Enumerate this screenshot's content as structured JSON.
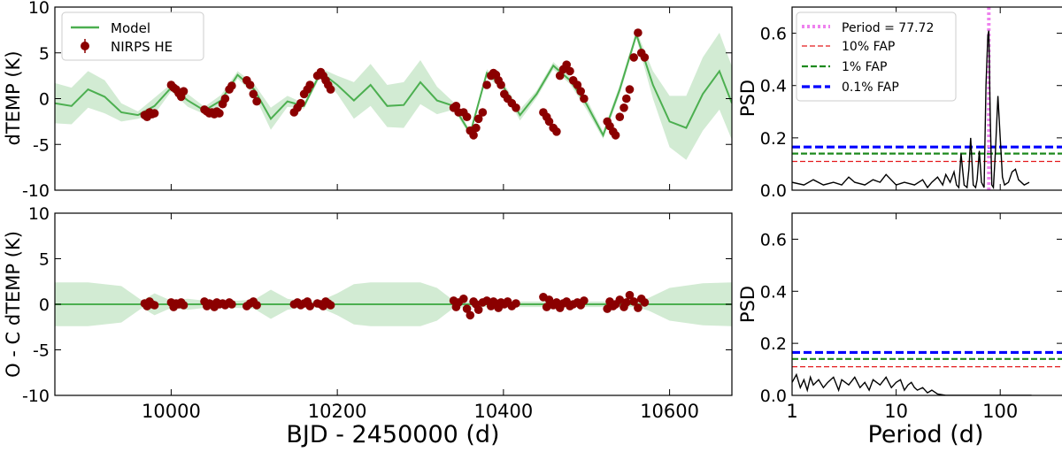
{
  "chart_data": [
    {
      "type": "line",
      "panel": "top-left",
      "xlabel": "",
      "ylabel": "dTEMP (K)",
      "xlim": [
        9860,
        10675
      ],
      "ylim": [
        -10,
        10
      ],
      "yticks": [
        "10",
        "5",
        "0",
        "-5",
        "-10"
      ],
      "xticks": [],
      "legend_placement": "top-left",
      "legend": [
        {
          "label": "Model",
          "kind": "line",
          "color": "#4caf50"
        },
        {
          "label": "NIRPS HE",
          "kind": "errorbar",
          "color": "#8b0000"
        }
      ],
      "series": [
        {
          "name": "Model",
          "x": [
            9860,
            9880,
            9900,
            9920,
            9940,
            9960,
            9980,
            10000,
            10020,
            10040,
            10060,
            10080,
            10100,
            10120,
            10140,
            10160,
            10180,
            10200,
            10220,
            10240,
            10260,
            10280,
            10300,
            10320,
            10340,
            10360,
            10380,
            10400,
            10420,
            10440,
            10460,
            10480,
            10500,
            10520,
            10540,
            10560,
            10580,
            10600,
            10620,
            10640,
            10660,
            10675
          ],
          "y": [
            -0.5,
            -0.8,
            1.0,
            0.2,
            -1.5,
            -1.8,
            -0.8,
            1.2,
            -0.2,
            -1.3,
            -0.2,
            2.6,
            1.0,
            -2.2,
            -0.3,
            -0.8,
            2.9,
            1.5,
            -0.2,
            1.5,
            -0.8,
            -0.7,
            1.8,
            -0.2,
            -0.8,
            -3.8,
            2.8,
            1.3,
            -1.8,
            0.5,
            3.6,
            2.0,
            -0.6,
            -4.0,
            1.0,
            7.0,
            1.5,
            -2.5,
            -3.2,
            0.5,
            3.0,
            -0.5
          ],
          "band_halfwidth": [
            2.2,
            2.0,
            2.0,
            1.8,
            1.0,
            0.4,
            0.9,
            0.4,
            0.7,
            0.4,
            0.6,
            0.4,
            0.6,
            1.2,
            0.6,
            0.3,
            0.4,
            1.0,
            2.0,
            2.3,
            2.3,
            2.5,
            2.4,
            1.5,
            0.4,
            0.3,
            0.4,
            0.4,
            0.6,
            0.4,
            0.4,
            0.4,
            0.6,
            0.4,
            0.5,
            0.4,
            1.5,
            2.8,
            3.5,
            4.0,
            4.2,
            4.0
          ]
        },
        {
          "name": "NIRPS HE",
          "x": [
            9968,
            9971,
            9974,
            9977,
            9980,
            10000,
            10003,
            10006,
            10009,
            10012,
            10015,
            10040,
            10043,
            10046,
            10049,
            10052,
            10055,
            10058,
            10062,
            10065,
            10070,
            10073,
            10091,
            10095,
            10099,
            10103,
            10148,
            10152,
            10156,
            10160,
            10164,
            10167,
            10176,
            10180,
            10183,
            10186,
            10189,
            10192,
            10340,
            10343,
            10346,
            10352,
            10356,
            10360,
            10364,
            10367,
            10370,
            10375,
            10380,
            10385,
            10388,
            10391,
            10394,
            10397,
            10401,
            10405,
            10410,
            10415,
            10448,
            10452,
            10455,
            10460,
            10464,
            10468,
            10472,
            10476,
            10480,
            10484,
            10489,
            10493,
            10497,
            10525,
            10528,
            10532,
            10535,
            10540,
            10545,
            10548,
            10552,
            10557,
            10562,
            10566,
            10570
          ],
          "y": [
            -1.8,
            -2.0,
            -1.5,
            -1.7,
            -1.6,
            1.5,
            1.2,
            1.0,
            0.6,
            0.2,
            0.8,
            -1.2,
            -1.4,
            -1.6,
            -1.5,
            -1.7,
            -1.4,
            -1.6,
            -0.6,
            0.0,
            1.0,
            1.4,
            2.0,
            1.5,
            0.5,
            -0.3,
            -1.5,
            -1.0,
            -0.5,
            0.5,
            1.0,
            1.5,
            2.5,
            2.9,
            2.5,
            2.0,
            1.5,
            1.0,
            -1.0,
            -0.8,
            -1.5,
            -1.5,
            -2.0,
            -3.5,
            -4.0,
            -3.2,
            -2.2,
            -1.5,
            1.5,
            2.5,
            2.8,
            2.6,
            2.0,
            1.5,
            0.5,
            0.0,
            -0.5,
            -1.0,
            -1.5,
            -2.0,
            -2.5,
            -3.2,
            -3.6,
            2.5,
            3.2,
            3.7,
            3.0,
            2.0,
            1.5,
            0.8,
            0.0,
            -2.5,
            -3.0,
            -3.6,
            -4.0,
            -2.0,
            -1.0,
            0.0,
            1.0,
            4.5,
            7.2,
            5.0,
            4.5
          ]
        }
      ]
    },
    {
      "type": "line",
      "panel": "bottom-left",
      "xlabel": "BJD - 2450000 (d)",
      "ylabel": "O - C dTEMP (K)",
      "xlim": [
        9860,
        10675
      ],
      "ylim": [
        -10,
        10
      ],
      "yticks": [
        "10",
        "5",
        "0",
        "-5",
        "-10"
      ],
      "xticks": [
        "10000",
        "10200",
        "10400",
        "10600"
      ],
      "xtick_values": [
        10000,
        10200,
        10400,
        10600
      ],
      "series": [
        {
          "name": "Model",
          "x": [
            9860,
            9900,
            9940,
            9965,
            9980,
            10000,
            10020,
            10040,
            10060,
            10080,
            10100,
            10120,
            10140,
            10160,
            10180,
            10200,
            10220,
            10240,
            10260,
            10280,
            10300,
            10320,
            10340,
            10360,
            10380,
            10400,
            10420,
            10440,
            10460,
            10480,
            10500,
            10520,
            10540,
            10560,
            10575,
            10600,
            10640,
            10675
          ],
          "y": [
            0,
            0,
            0,
            0,
            0,
            0,
            0,
            0,
            0,
            0,
            0,
            0,
            0,
            0,
            0,
            0,
            0,
            0,
            0,
            0,
            0,
            0,
            0,
            0,
            0,
            0,
            0,
            0,
            0,
            0,
            0,
            0,
            0,
            0,
            0,
            0,
            0,
            0
          ],
          "band_halfwidth": [
            2.4,
            2.4,
            2.0,
            0.4,
            1.2,
            0.4,
            0.6,
            0.4,
            0.4,
            0.4,
            0.5,
            1.6,
            0.6,
            0.3,
            0.4,
            1.2,
            2.2,
            2.4,
            2.4,
            2.4,
            2.4,
            1.8,
            0.4,
            0.3,
            0.3,
            0.3,
            0.3,
            0.3,
            0.3,
            0.3,
            0.3,
            0.3,
            0.3,
            0.3,
            0.7,
            1.8,
            2.3,
            2.4
          ]
        },
        {
          "name": "NIRPS HE",
          "x": [
            9968,
            9971,
            9974,
            9977,
            9980,
            10000,
            10003,
            10006,
            10009,
            10012,
            10015,
            10040,
            10043,
            10046,
            10049,
            10052,
            10055,
            10058,
            10062,
            10065,
            10070,
            10073,
            10091,
            10095,
            10099,
            10103,
            10148,
            10152,
            10156,
            10160,
            10164,
            10167,
            10176,
            10180,
            10183,
            10186,
            10189,
            10192,
            10340,
            10343,
            10346,
            10352,
            10356,
            10360,
            10364,
            10367,
            10370,
            10375,
            10380,
            10385,
            10388,
            10391,
            10394,
            10397,
            10401,
            10405,
            10410,
            10415,
            10448,
            10452,
            10455,
            10460,
            10464,
            10468,
            10472,
            10476,
            10480,
            10484,
            10489,
            10493,
            10497,
            10525,
            10528,
            10532,
            10535,
            10540,
            10545,
            10548,
            10552,
            10557,
            10562,
            10566,
            10570
          ],
          "y": [
            0.1,
            -0.2,
            0.3,
            0.0,
            -0.1,
            0.2,
            -0.3,
            0.1,
            0.0,
            0.2,
            -0.1,
            0.3,
            -0.2,
            0.1,
            0.0,
            -0.3,
            0.2,
            0.0,
            0.1,
            -0.1,
            0.2,
            0.0,
            -0.2,
            0.1,
            0.3,
            -0.1,
            0.0,
            0.2,
            -0.1,
            0.1,
            0.3,
            -0.2,
            0.1,
            0.0,
            -0.2,
            0.3,
            0.1,
            -0.1,
            0.4,
            -0.3,
            0.2,
            0.6,
            -0.5,
            -1.2,
            0.3,
            0.0,
            -0.6,
            0.2,
            0.4,
            -0.2,
            0.3,
            0.1,
            -0.4,
            0.2,
            0.0,
            0.3,
            -0.2,
            0.1,
            0.8,
            -0.3,
            0.5,
            -0.1,
            0.2,
            -0.4,
            0.1,
            0.3,
            -0.2,
            0.0,
            0.2,
            -0.1,
            0.4,
            -0.5,
            0.3,
            -0.2,
            0.0,
            0.5,
            -0.3,
            0.2,
            1.0,
            0.3,
            -0.4,
            0.6,
            0.2
          ]
        }
      ]
    },
    {
      "type": "line",
      "panel": "top-right",
      "xlabel": "",
      "ylabel": "PSD",
      "xscale": "log",
      "xlim": [
        1,
        400
      ],
      "ylim": [
        0,
        0.7
      ],
      "yticks": [
        "0.0",
        "0.2",
        "0.4",
        "0.6"
      ],
      "ytick_values": [
        0.0,
        0.2,
        0.4,
        0.6
      ],
      "xticks": [],
      "legend_placement": "top-left",
      "vline": {
        "x": 77.72,
        "color": "#ee82ee"
      },
      "legend": [
        {
          "label": "Period = 77.72",
          "style": "dotted",
          "color": "#ee82ee"
        },
        {
          "label": "10% FAP",
          "style": "dashed",
          "color": "#e41a1c",
          "y": 0.11
        },
        {
          "label": "1% FAP",
          "style": "dashed",
          "color": "#1e8a1e",
          "y": 0.14
        },
        {
          "label": "0.1% FAP",
          "style": "dashed",
          "color": "#0000ff",
          "y": 0.165
        }
      ],
      "series": [
        {
          "name": "periodogram",
          "x": [
            1.0,
            1.3,
            1.6,
            2.0,
            2.5,
            3.0,
            3.5,
            4.0,
            5.0,
            6.0,
            7.0,
            8.0,
            10,
            12,
            15,
            18,
            20,
            22,
            25,
            28,
            30,
            33,
            36,
            38,
            40,
            42,
            45,
            48,
            50,
            52,
            55,
            58,
            60,
            63,
            66,
            70,
            73,
            76,
            77.72,
            80,
            83,
            86,
            90,
            95,
            100,
            105,
            110,
            120,
            130,
            140,
            150,
            170,
            190
          ],
          "y": [
            0.03,
            0.02,
            0.04,
            0.02,
            0.03,
            0.02,
            0.05,
            0.03,
            0.02,
            0.04,
            0.03,
            0.06,
            0.02,
            0.03,
            0.02,
            0.04,
            0.01,
            0.03,
            0.05,
            0.02,
            0.06,
            0.03,
            0.07,
            0.02,
            0.01,
            0.14,
            0.02,
            0.01,
            0.08,
            0.2,
            0.02,
            0.01,
            0.04,
            0.15,
            0.03,
            0.01,
            0.4,
            0.59,
            0.61,
            0.3,
            0.02,
            0.01,
            0.15,
            0.36,
            0.2,
            0.05,
            0.02,
            0.03,
            0.07,
            0.08,
            0.04,
            0.02,
            0.03
          ]
        }
      ]
    },
    {
      "type": "line",
      "panel": "bottom-right",
      "xlabel": "Period (d)",
      "ylabel": "PSD",
      "xscale": "log",
      "xlim": [
        1,
        400
      ],
      "ylim": [
        0,
        0.7
      ],
      "yticks": [
        "0.0",
        "0.2",
        "0.4",
        "0.6"
      ],
      "ytick_values": [
        0.0,
        0.2,
        0.4,
        0.6
      ],
      "xticks": [
        "1",
        "10",
        "100"
      ],
      "xtick_values": [
        1,
        10,
        100
      ],
      "fap_lines": [
        {
          "y": 0.11,
          "color": "#e41a1c"
        },
        {
          "y": 0.14,
          "color": "#1e8a1e"
        },
        {
          "y": 0.165,
          "color": "#0000ff"
        }
      ],
      "series": [
        {
          "name": "periodogram",
          "x": [
            1.0,
            1.1,
            1.2,
            1.3,
            1.4,
            1.5,
            1.6,
            1.8,
            2.0,
            2.2,
            2.5,
            2.8,
            3.0,
            3.5,
            4.0,
            4.5,
            5.0,
            5.5,
            6.0,
            7.0,
            8.0,
            9.0,
            10,
            11,
            12,
            13,
            14,
            15,
            16,
            18,
            20,
            22,
            25,
            30,
            40,
            60,
            100,
            200
          ],
          "y": [
            0.05,
            0.08,
            0.03,
            0.06,
            0.02,
            0.07,
            0.04,
            0.06,
            0.03,
            0.05,
            0.07,
            0.02,
            0.06,
            0.04,
            0.07,
            0.03,
            0.05,
            0.02,
            0.06,
            0.04,
            0.07,
            0.03,
            0.05,
            0.06,
            0.02,
            0.04,
            0.05,
            0.03,
            0.02,
            0.03,
            0.01,
            0.02,
            0.005,
            0.0,
            0.0,
            0.0,
            0.0,
            0.0
          ]
        }
      ]
    }
  ]
}
